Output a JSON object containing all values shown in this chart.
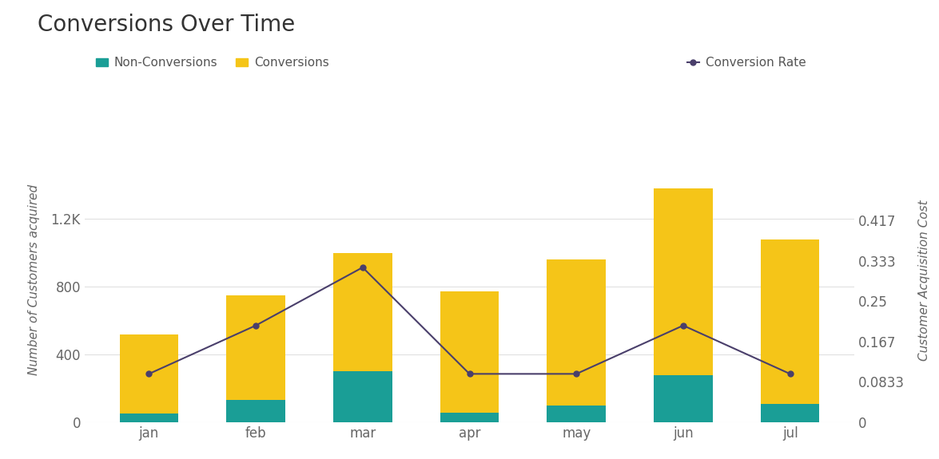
{
  "months": [
    "jan",
    "feb",
    "mar",
    "apr",
    "may",
    "jun",
    "jul"
  ],
  "non_conversions": [
    50,
    130,
    300,
    55,
    100,
    280,
    110
  ],
  "conversions": [
    470,
    620,
    700,
    720,
    860,
    1100,
    970
  ],
  "conversion_rate": [
    0.1,
    0.2,
    0.32,
    0.1,
    0.1,
    0.2,
    0.1
  ],
  "bar_color_conversions": "#F5C518",
  "bar_color_non_conversions": "#1A9E96",
  "line_color": "#4A3F6B",
  "title": "Conversions Over Time",
  "ylabel_left": "Number of Customers acquired",
  "ylabel_right": "Customer Acquisition Cost",
  "ylim_left": [
    0,
    1680
  ],
  "ylim_right": [
    0,
    0.588
  ],
  "yticks_left": [
    0,
    400,
    800,
    1200
  ],
  "yticks_right": [
    0,
    0.0833,
    0.167,
    0.25,
    0.333,
    0.417
  ],
  "ytick_labels_left": [
    "0",
    "400",
    "800",
    "1.2K"
  ],
  "ytick_labels_right": [
    "0",
    "0.0833",
    "0.167",
    "0.25",
    "0.333",
    "0.417"
  ],
  "background_color": "#FFFFFF",
  "grid_color": "#E0E0E0",
  "title_fontsize": 20,
  "label_fontsize": 11,
  "tick_fontsize": 12,
  "legend_fontsize": 11
}
